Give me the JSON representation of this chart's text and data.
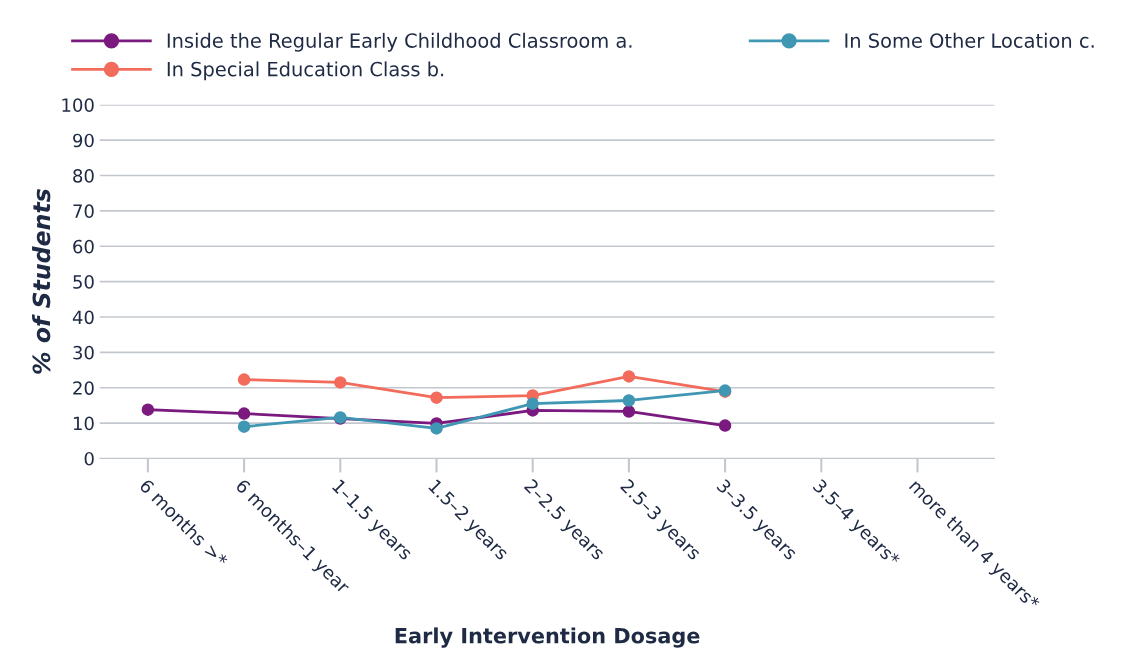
{
  "chart_data": {
    "type": "line",
    "xlabel": "Early Intervention Dosage",
    "ylabel": "% of Students",
    "categories": [
      "6 months >*",
      "6 months–1 year",
      "1–1.5 years",
      "1.5–2 years",
      "2–2.5 years",
      "2.5–3 years",
      "3–3.5 years",
      "3.5–4 years*",
      "more than 4 years*"
    ],
    "series": [
      {
        "name": "Inside the Regular Early Childhood Classroom a.",
        "color": "#7b1a7e",
        "values": [
          13.8,
          12.7,
          11.3,
          9.9,
          13.6,
          13.3,
          9.3,
          null,
          null
        ]
      },
      {
        "name": "In Special Education Class b.",
        "color": "#f26b5b",
        "values": [
          null,
          22.3,
          21.5,
          17.2,
          17.8,
          23.2,
          18.9,
          null,
          null
        ]
      },
      {
        "name": "In Some Other Location c.",
        "color": "#3f97b3",
        "values": [
          null,
          9.0,
          11.6,
          8.5,
          15.5,
          16.4,
          19.2,
          null,
          null
        ]
      }
    ],
    "ylim": [
      0,
      100
    ],
    "yticks": [
      0,
      10,
      20,
      30,
      40,
      50,
      60,
      70,
      80,
      90,
      100
    ],
    "grid": "y",
    "legend": "top",
    "marker": "circle",
    "line_style": "solid"
  }
}
